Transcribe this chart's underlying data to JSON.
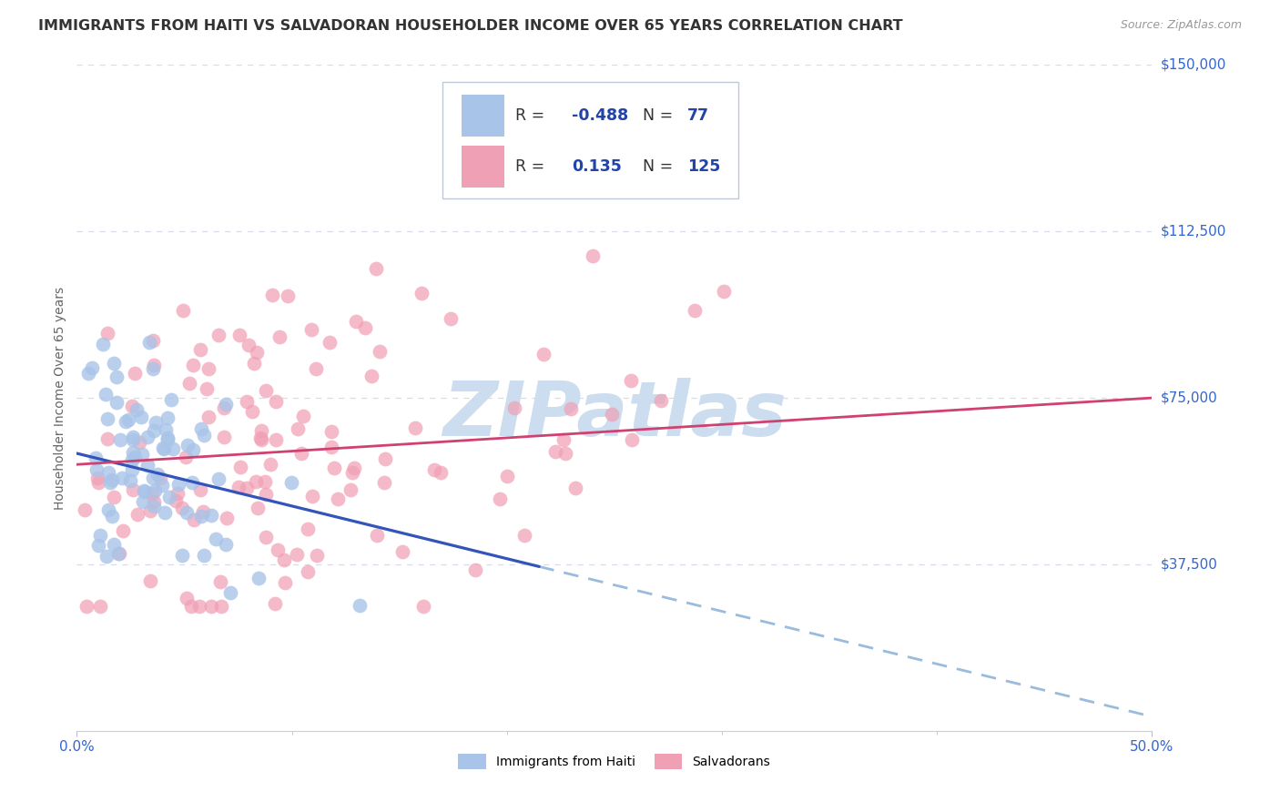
{
  "title": "IMMIGRANTS FROM HAITI VS SALVADORAN HOUSEHOLDER INCOME OVER 65 YEARS CORRELATION CHART",
  "source": "Source: ZipAtlas.com",
  "ylabel": "Householder Income Over 65 years",
  "xlim": [
    0.0,
    0.5
  ],
  "ylim": [
    0,
    150000
  ],
  "yticks": [
    0,
    37500,
    75000,
    112500,
    150000
  ],
  "ytick_labels": [
    "",
    "$37,500",
    "$75,000",
    "$112,500",
    "$150,000"
  ],
  "r_haiti": -0.488,
  "n_haiti": 77,
  "r_salvadoran": 0.135,
  "n_salvadoran": 125,
  "haiti_color": "#a8c4e8",
  "salvadoran_color": "#f0a0b4",
  "haiti_line_color": "#3355bb",
  "salvadoran_line_color": "#d04070",
  "haiti_dash_color": "#99bbdd",
  "grid_color": "#d8dce8",
  "watermark_color": "#ccddf0",
  "ytick_color": "#3366cc",
  "xtick_color": "#3366cc",
  "title_color": "#333333",
  "source_color": "#999999",
  "ylabel_color": "#666666",
  "legend_num_color": "#2244aa",
  "legend_fontsize": 12.5,
  "title_fontsize": 11.5,
  "axis_label_fontsize": 10,
  "ytick_fontsize": 11,
  "xtick_fontsize": 11,
  "marker_size": 130,
  "background_color": "#ffffff",
  "haiti_line_y0": 62500,
  "haiti_line_y1": 37000,
  "haiti_dash_y0": 37000,
  "haiti_dash_y1": 18000,
  "salv_line_y0": 60000,
  "salv_line_y1": 75000,
  "haiti_x_max": 0.215,
  "salv_x_max": 0.5
}
